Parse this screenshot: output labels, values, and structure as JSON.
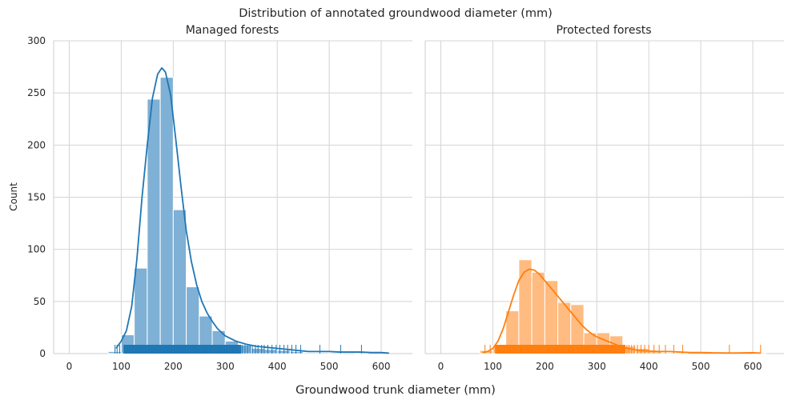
{
  "figure": {
    "suptitle": "Distribution of annotated groundwood diameter (mm)",
    "supxlabel": "Groundwood trunk diameter (mm)"
  },
  "chart_data": [
    {
      "type": "histogram",
      "title": "Managed forests",
      "xlabel": "",
      "ylabel": "Count",
      "xlim": [
        -30,
        660
      ],
      "ylim": [
        0,
        300
      ],
      "xticks": [
        0,
        100,
        200,
        300,
        400,
        500,
        600
      ],
      "yticks": [
        0,
        50,
        100,
        150,
        200,
        250,
        300
      ],
      "grid": true,
      "bar_color": "#7fb0d5",
      "line_color": "#1f77b4",
      "bins": [
        {
          "x0": 75,
          "x1": 100,
          "count": 2
        },
        {
          "x0": 100,
          "x1": 125,
          "count": 18
        },
        {
          "x0": 125,
          "x1": 150,
          "count": 82
        },
        {
          "x0": 150,
          "x1": 175,
          "count": 244
        },
        {
          "x0": 175,
          "x1": 200,
          "count": 265
        },
        {
          "x0": 200,
          "x1": 225,
          "count": 138
        },
        {
          "x0": 225,
          "x1": 250,
          "count": 64
        },
        {
          "x0": 250,
          "x1": 275,
          "count": 36
        },
        {
          "x0": 275,
          "x1": 300,
          "count": 22
        },
        {
          "x0": 300,
          "x1": 325,
          "count": 12
        },
        {
          "x0": 325,
          "x1": 350,
          "count": 8
        },
        {
          "x0": 350,
          "x1": 375,
          "count": 5
        },
        {
          "x0": 375,
          "x1": 400,
          "count": 4
        },
        {
          "x0": 400,
          "x1": 425,
          "count": 3
        },
        {
          "x0": 425,
          "x1": 450,
          "count": 2
        },
        {
          "x0": 450,
          "x1": 475,
          "count": 1
        },
        {
          "x0": 475,
          "x1": 500,
          "count": 1
        },
        {
          "x0": 500,
          "x1": 525,
          "count": 1
        },
        {
          "x0": 525,
          "x1": 550,
          "count": 0
        },
        {
          "x0": 550,
          "x1": 575,
          "count": 1
        }
      ],
      "kde": [
        [
          90,
          5
        ],
        [
          100,
          12
        ],
        [
          110,
          22
        ],
        [
          120,
          45
        ],
        [
          130,
          90
        ],
        [
          140,
          150
        ],
        [
          150,
          200
        ],
        [
          160,
          245
        ],
        [
          170,
          268
        ],
        [
          178,
          274
        ],
        [
          185,
          270
        ],
        [
          195,
          248
        ],
        [
          205,
          205
        ],
        [
          215,
          160
        ],
        [
          225,
          118
        ],
        [
          235,
          88
        ],
        [
          245,
          66
        ],
        [
          255,
          50
        ],
        [
          265,
          39
        ],
        [
          275,
          31
        ],
        [
          285,
          24
        ],
        [
          300,
          17
        ],
        [
          320,
          12
        ],
        [
          340,
          9
        ],
        [
          360,
          7
        ],
        [
          380,
          6
        ],
        [
          400,
          5
        ],
        [
          420,
          4
        ],
        [
          440,
          3
        ],
        [
          460,
          2
        ],
        [
          480,
          2
        ],
        [
          500,
          2
        ],
        [
          520,
          1.5
        ],
        [
          540,
          1.5
        ],
        [
          560,
          1.5
        ],
        [
          580,
          1
        ],
        [
          600,
          1
        ],
        [
          615,
          0.5
        ]
      ],
      "rug": {
        "dense_range": [
          105,
          330
        ],
        "scattered": [
          88,
          92,
          97,
          333,
          338,
          343,
          348,
          352,
          358,
          363,
          370,
          375,
          382,
          390,
          398,
          405,
          413,
          420,
          428,
          436,
          445,
          482,
          522,
          562
        ]
      }
    },
    {
      "type": "histogram",
      "title": "Protected forests",
      "xlabel": "",
      "ylabel": "",
      "xlim": [
        -30,
        660
      ],
      "ylim": [
        0,
        300
      ],
      "xticks": [
        0,
        100,
        200,
        300,
        400,
        500,
        600
      ],
      "yticks": [
        0,
        50,
        100,
        150,
        200,
        250,
        300
      ],
      "grid": true,
      "bar_color": "#ffbb80",
      "line_color": "#ff7f0e",
      "bins": [
        {
          "x0": 75,
          "x1": 100,
          "count": 3
        },
        {
          "x0": 100,
          "x1": 125,
          "count": 7
        },
        {
          "x0": 125,
          "x1": 150,
          "count": 41
        },
        {
          "x0": 150,
          "x1": 175,
          "count": 90
        },
        {
          "x0": 175,
          "x1": 200,
          "count": 78
        },
        {
          "x0": 200,
          "x1": 225,
          "count": 70
        },
        {
          "x0": 225,
          "x1": 250,
          "count": 49
        },
        {
          "x0": 250,
          "x1": 275,
          "count": 47
        },
        {
          "x0": 275,
          "x1": 300,
          "count": 20
        },
        {
          "x0": 300,
          "x1": 325,
          "count": 20
        },
        {
          "x0": 325,
          "x1": 350,
          "count": 17
        },
        {
          "x0": 350,
          "x1": 375,
          "count": 7
        },
        {
          "x0": 375,
          "x1": 400,
          "count": 5
        },
        {
          "x0": 400,
          "x1": 425,
          "count": 3
        },
        {
          "x0": 425,
          "x1": 450,
          "count": 1
        },
        {
          "x0": 450,
          "x1": 475,
          "count": 1
        },
        {
          "x0": 475,
          "x1": 500,
          "count": 0
        },
        {
          "x0": 500,
          "x1": 525,
          "count": 0
        },
        {
          "x0": 525,
          "x1": 550,
          "count": 0
        },
        {
          "x0": 550,
          "x1": 575,
          "count": 0
        },
        {
          "x0": 575,
          "x1": 600,
          "count": 0
        },
        {
          "x0": 600,
          "x1": 625,
          "count": 1
        }
      ],
      "kde": [
        [
          80,
          1
        ],
        [
          90,
          2
        ],
        [
          100,
          5
        ],
        [
          110,
          12
        ],
        [
          120,
          24
        ],
        [
          130,
          40
        ],
        [
          140,
          56
        ],
        [
          150,
          70
        ],
        [
          160,
          78
        ],
        [
          170,
          81
        ],
        [
          180,
          80
        ],
        [
          190,
          76
        ],
        [
          200,
          70
        ],
        [
          210,
          64
        ],
        [
          220,
          58
        ],
        [
          230,
          52
        ],
        [
          240,
          46
        ],
        [
          250,
          40
        ],
        [
          260,
          34
        ],
        [
          270,
          28
        ],
        [
          280,
          23
        ],
        [
          290,
          19
        ],
        [
          300,
          16
        ],
        [
          310,
          14
        ],
        [
          320,
          12
        ],
        [
          330,
          10
        ],
        [
          340,
          8
        ],
        [
          350,
          6
        ],
        [
          360,
          5
        ],
        [
          370,
          4
        ],
        [
          380,
          3
        ],
        [
          400,
          2.5
        ],
        [
          420,
          2
        ],
        [
          440,
          2
        ],
        [
          460,
          1.5
        ],
        [
          480,
          1
        ],
        [
          500,
          1
        ],
        [
          520,
          0.8
        ],
        [
          560,
          0.6
        ],
        [
          600,
          0.8
        ],
        [
          615,
          0.5
        ]
      ],
      "rug": {
        "dense_range": [
          105,
          355
        ],
        "scattered": [
          85,
          95,
          358,
          362,
          367,
          372,
          378,
          385,
          392,
          400,
          410,
          420,
          432,
          448,
          465,
          555,
          615
        ]
      }
    }
  ]
}
